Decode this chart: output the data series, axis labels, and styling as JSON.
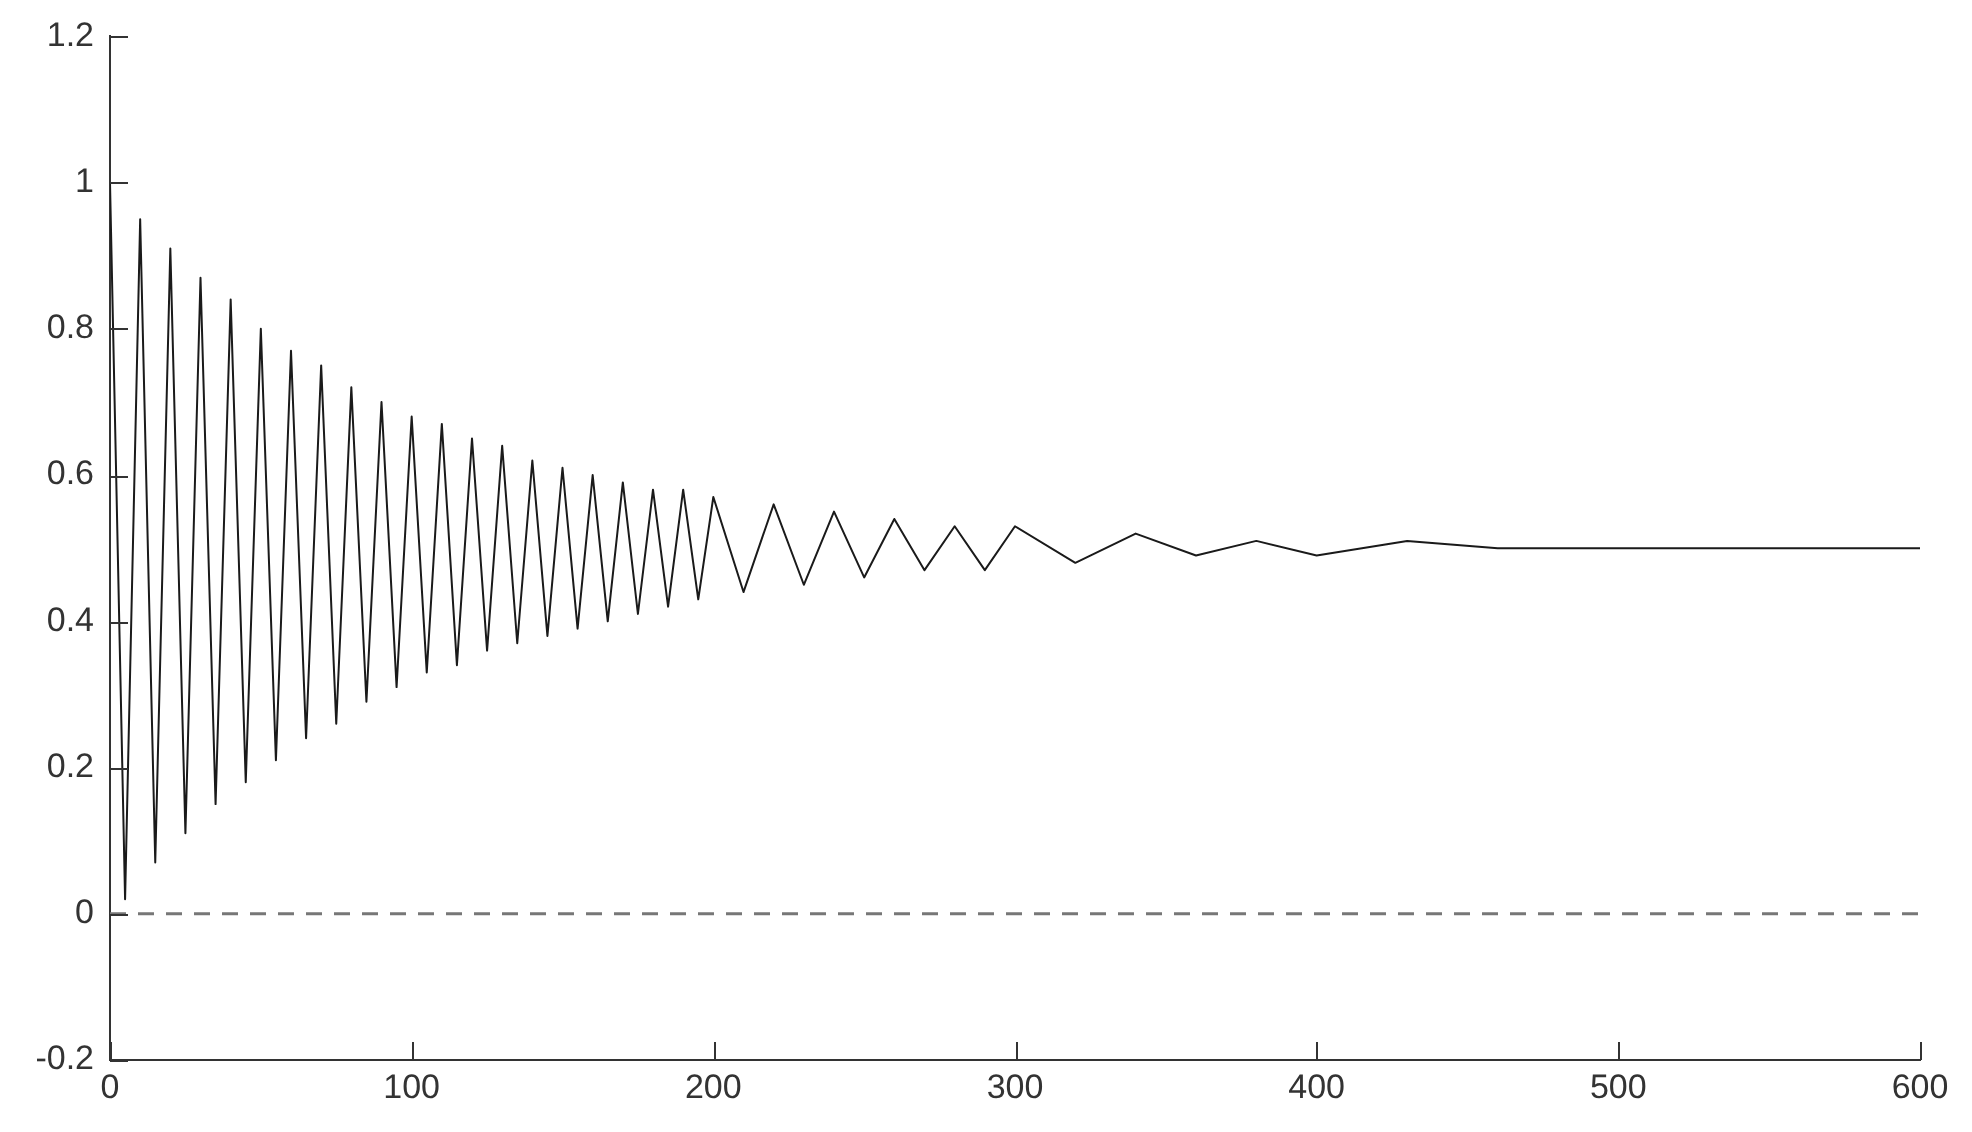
{
  "chart_data": {
    "type": "line",
    "x": [
      0,
      5,
      10,
      15,
      20,
      25,
      30,
      35,
      40,
      45,
      50,
      55,
      60,
      65,
      70,
      75,
      80,
      85,
      90,
      95,
      100,
      105,
      110,
      115,
      120,
      125,
      130,
      135,
      140,
      145,
      150,
      155,
      160,
      165,
      170,
      175,
      180,
      185,
      190,
      195,
      200,
      210,
      220,
      230,
      240,
      250,
      260,
      270,
      280,
      290,
      300,
      320,
      340,
      360,
      380,
      400,
      430,
      460,
      500,
      550,
      600
    ],
    "series": [
      {
        "color": "#1a1a1a",
        "values": [
          1.0,
          0.02,
          0.95,
          0.07,
          0.91,
          0.11,
          0.87,
          0.15,
          0.84,
          0.18,
          0.8,
          0.21,
          0.77,
          0.24,
          0.75,
          0.26,
          0.72,
          0.29,
          0.7,
          0.31,
          0.68,
          0.33,
          0.67,
          0.34,
          0.65,
          0.36,
          0.64,
          0.37,
          0.62,
          0.38,
          0.61,
          0.39,
          0.6,
          0.4,
          0.59,
          0.41,
          0.58,
          0.42,
          0.58,
          0.43,
          0.57,
          0.44,
          0.56,
          0.45,
          0.55,
          0.46,
          0.54,
          0.47,
          0.53,
          0.47,
          0.53,
          0.48,
          0.52,
          0.49,
          0.51,
          0.49,
          0.51,
          0.5,
          0.5,
          0.5,
          0.5
        ]
      }
    ],
    "xlim": [
      0,
      600
    ],
    "xticks": [
      0,
      100,
      200,
      300,
      400,
      500,
      600
    ],
    "ylim": [
      -0.2,
      1.2
    ],
    "yticks": [
      -0.2,
      0,
      0.2,
      0.4,
      0.6,
      0.8,
      1,
      1.2
    ],
    "ref_lines": [
      {
        "axis": "y",
        "value": 0,
        "color": "#777777",
        "line_style": "dashed"
      }
    ],
    "grid": false,
    "legend": false,
    "marker": "none",
    "line_style": "solid"
  }
}
